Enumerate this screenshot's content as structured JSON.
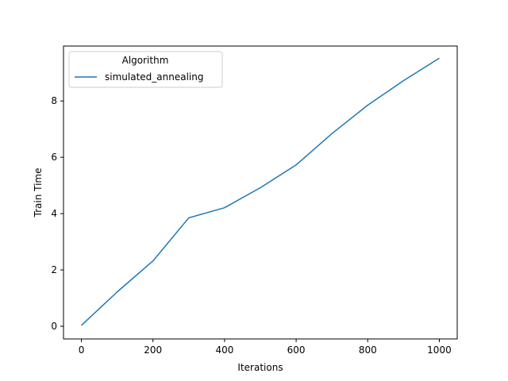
{
  "chart_data": {
    "type": "line",
    "title": "",
    "xlabel": "Iterations",
    "ylabel": "Train Time",
    "xlim": [
      -50,
      1050
    ],
    "ylim": [
      -0.45,
      9.95
    ],
    "x_ticks": [
      0,
      200,
      400,
      600,
      800,
      1000
    ],
    "y_ticks": [
      0,
      2,
      4,
      6,
      8
    ],
    "grid": false,
    "legend": {
      "title": "Algorithm",
      "placement": "upper left"
    },
    "series": [
      {
        "name": "simulated_annealing",
        "color": "#1f77b4",
        "x": [
          0,
          100,
          200,
          300,
          400,
          500,
          600,
          700,
          800,
          900,
          1000
        ],
        "y": [
          0.03,
          1.22,
          2.32,
          3.85,
          4.21,
          4.92,
          5.73,
          6.84,
          7.85,
          8.72,
          9.52
        ]
      }
    ]
  }
}
